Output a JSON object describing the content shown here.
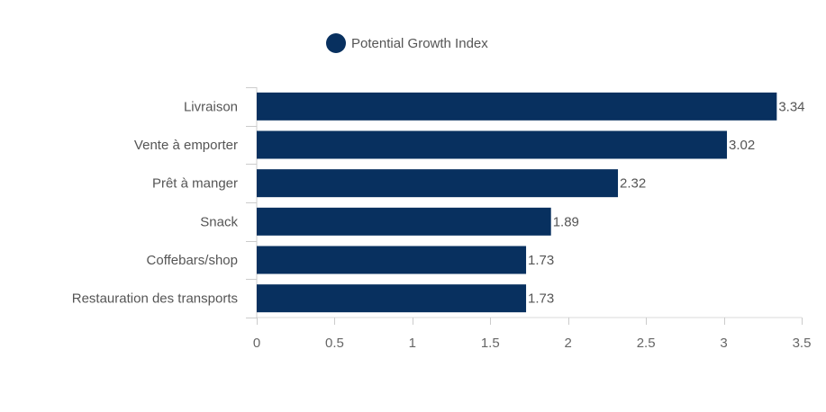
{
  "chart_data": {
    "type": "bar",
    "orientation": "horizontal",
    "categories": [
      "Livraison",
      "Vente à emporter",
      "Prêt à manger",
      "Snack",
      "Coffebars/shop",
      "Restauration des transports"
    ],
    "series": [
      {
        "name": "Potential Growth Index",
        "values": [
          3.34,
          3.02,
          2.32,
          1.89,
          1.73,
          1.73
        ],
        "value_labels": [
          "3.34",
          "3.02",
          "2.32",
          "1.89",
          "1.73",
          "1.73"
        ],
        "color": "#08305f"
      }
    ],
    "xlim": [
      0,
      3.5
    ],
    "xticks": [
      0,
      0.5,
      1,
      1.5,
      2,
      2.5,
      3,
      3.5
    ],
    "xtick_labels": [
      "0",
      "0.5",
      "1",
      "1.5",
      "2",
      "2.5",
      "3",
      "3.5"
    ],
    "legend_position": "top-center",
    "grid": false,
    "title": "",
    "xlabel": "",
    "ylabel": ""
  }
}
